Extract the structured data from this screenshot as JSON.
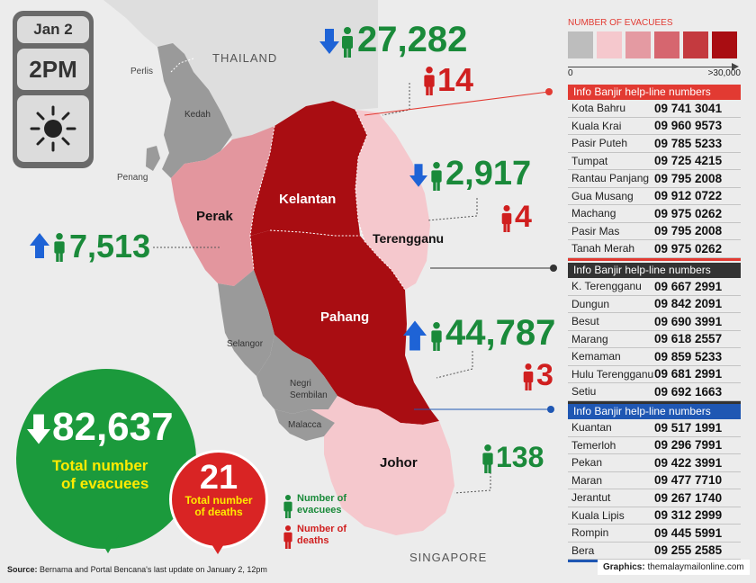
{
  "date": {
    "day": "Jan 2",
    "time": "2PM",
    "weather_icon": "sun-icon"
  },
  "map_labels": {
    "thailand": "THAILAND",
    "singapore": "SINGAPORE",
    "perlis": "Perlis",
    "kedah": "Kedah",
    "penang": "Penang",
    "perak": "Perak",
    "kelantan": "Kelantan",
    "terengganu": "Terengganu",
    "pahang": "Pahang",
    "selangor": "Selangor",
    "negri_sembilan": "Negri Sembilan",
    "malacca": "Malacca",
    "johor": "Johor"
  },
  "stats": {
    "kelantan": {
      "evacuees": "27,282",
      "deaths": "14",
      "trend": "down"
    },
    "terengganu": {
      "evacuees": "2,917",
      "deaths": "4",
      "trend": "down"
    },
    "perak": {
      "evacuees": "7,513",
      "trend": "up"
    },
    "pahang": {
      "evacuees": "44,787",
      "deaths": "3",
      "trend": "up"
    },
    "johor": {
      "evacuees": "138"
    }
  },
  "totals": {
    "evacuees": "82,637",
    "evacuees_label_1": "Total number",
    "evacuees_label_2": "of evacuees",
    "deaths": "21",
    "deaths_label_1": "Total number",
    "deaths_label_2": "of deaths"
  },
  "legend": {
    "title": "NUMBER OF EVACUEES",
    "min": "0",
    "max": ">30,000",
    "colors": [
      "#bdbdbd",
      "#f5c8cd",
      "#e49aa2",
      "#d6666f",
      "#c43a3f",
      "#a90d12"
    ],
    "evacuees_label_1": "Number of",
    "evacuees_label_2": "evacuees",
    "deaths_label_1": "Number of",
    "deaths_label_2": "deaths"
  },
  "helplines": [
    {
      "title": "Info Banjir help-line numbers",
      "color": "#e23a32",
      "rows": [
        {
          "name": "Kota Bahru",
          "phone": "09 741 3041"
        },
        {
          "name": "Kuala Krai",
          "phone": "09 960 9573"
        },
        {
          "name": "Pasir Puteh",
          "phone": "09 785 5233"
        },
        {
          "name": "Tumpat",
          "phone": "09 725 4215"
        },
        {
          "name": "Rantau Panjang",
          "phone": "09 795 2008"
        },
        {
          "name": "Gua Musang",
          "phone": "09 912 0722"
        },
        {
          "name": "Machang",
          "phone": "09 975 0262"
        },
        {
          "name": "Pasir Mas",
          "phone": "09 795 2008"
        },
        {
          "name": "Tanah Merah",
          "phone": "09 975 0262"
        }
      ]
    },
    {
      "title": "Info Banjir help-line numbers",
      "color": "#333333",
      "rows": [
        {
          "name": "K. Terengganu",
          "phone": "09 667 2991"
        },
        {
          "name": "Dungun",
          "phone": "09 842 2091"
        },
        {
          "name": "Besut",
          "phone": "09 690 3991"
        },
        {
          "name": "Marang",
          "phone": "09 618 2557"
        },
        {
          "name": "Kemaman",
          "phone": "09 859 5233"
        },
        {
          "name": "Hulu Terengganu",
          "phone": "09 681 2991"
        },
        {
          "name": "Setiu",
          "phone": "09 692 1663"
        }
      ]
    },
    {
      "title": "Info Banjir help-line numbers",
      "color": "#1f57b3",
      "rows": [
        {
          "name": "Kuantan",
          "phone": "09 517 1991"
        },
        {
          "name": "Temerloh",
          "phone": "09 296 7991"
        },
        {
          "name": "Pekan",
          "phone": "09 422 3991"
        },
        {
          "name": "Maran",
          "phone": "09 477 7710"
        },
        {
          "name": "Jerantut",
          "phone": "09 267 1740"
        },
        {
          "name": "Kuala Lipis",
          "phone": "09 312 2999"
        },
        {
          "name": "Rompin",
          "phone": "09 445 5991"
        },
        {
          "name": "Bera",
          "phone": "09 255 2585"
        }
      ]
    }
  ],
  "footer": {
    "source_label": "Source:",
    "source_text": "Bernama and Portal Bencana's last update on January 2, 12pm",
    "graphics_label": "Graphics:",
    "graphics_text": "themalaymailonline.com"
  }
}
